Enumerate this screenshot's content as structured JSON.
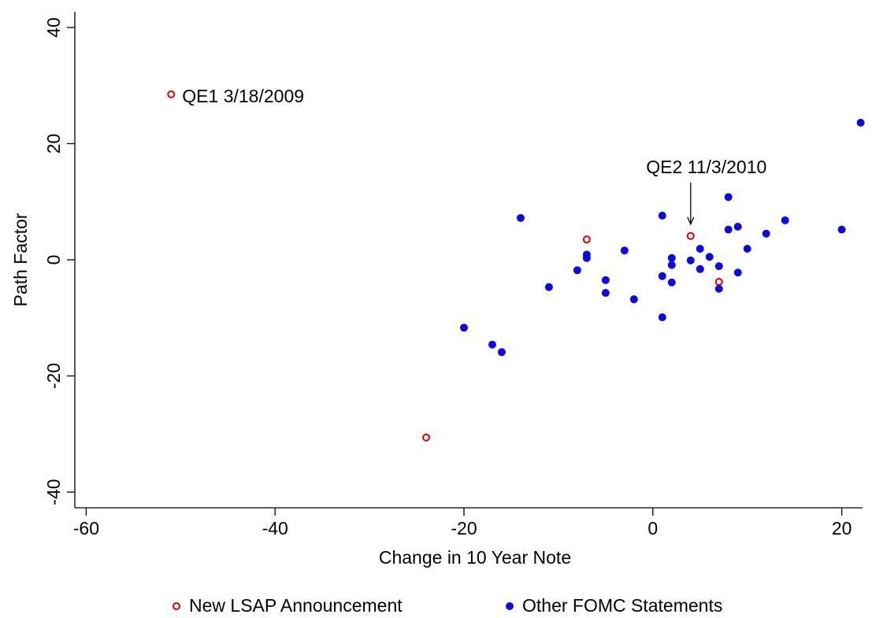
{
  "chart_data": {
    "type": "scatter",
    "x_label": "Change in 10 Year Note",
    "y_label": "Path Factor",
    "xlim": [
      -61.2,
      22.2
    ],
    "xticks": [
      -60,
      -40,
      -20,
      0,
      20
    ],
    "ylim": [
      -42.7,
      42.7
    ],
    "yticks": [
      -40,
      -20,
      0,
      20,
      40
    ],
    "grid": false,
    "legend": "bottom",
    "series": [
      {
        "name": "New LSAP Announcement",
        "color": "#e00000",
        "marker": "hollow",
        "x": [
          -51,
          -24,
          -7,
          4,
          7
        ],
        "values": [
          28.5,
          -30.6,
          3.5,
          4.1,
          -3.8
        ]
      },
      {
        "name": "Other FOMC Statements",
        "color": "#0a0ae8",
        "marker": "filled",
        "x": [
          -14,
          -11,
          -20,
          -17,
          -16,
          -8,
          -7,
          -7,
          -5,
          -5,
          -3,
          -2,
          1,
          1,
          1,
          2,
          2,
          2,
          4,
          5,
          5,
          6,
          7,
          7,
          8,
          8,
          9,
          9,
          10,
          12,
          14,
          20,
          22
        ],
        "values": [
          7.2,
          -4.7,
          -11.7,
          -14.6,
          -15.9,
          -1.8,
          0.9,
          0.3,
          -3.5,
          -5.7,
          1.6,
          -6.8,
          7.6,
          -2.8,
          -9.9,
          0.3,
          -0.9,
          -3.9,
          -0.1,
          1.9,
          -1.6,
          0.5,
          -1.1,
          -5.0,
          10.8,
          5.2,
          5.7,
          -2.2,
          1.9,
          4.5,
          6.8,
          5.2,
          23.6
        ]
      }
    ],
    "annotations": [
      {
        "text": "QE1 3/18/2009"
      },
      {
        "text": "QE2 11/3/2010"
      }
    ]
  }
}
